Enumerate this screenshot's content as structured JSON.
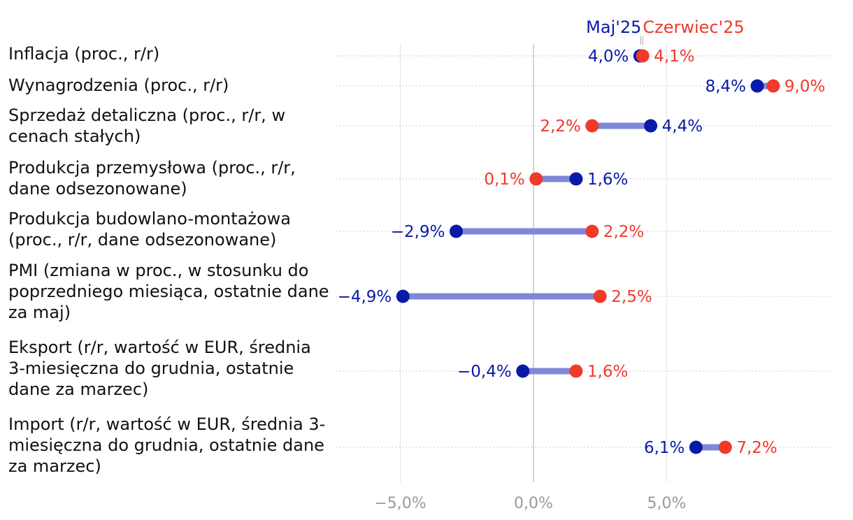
{
  "chart_data": {
    "type": "dumbbell",
    "series": [
      {
        "name": "Maj'25",
        "color": "#0a1aa8"
      },
      {
        "name": "Czerwiec'25",
        "color": "#f03a2a"
      }
    ],
    "link_color": "#7f87d8",
    "categories": [
      "Inflacja (proc., r/r)",
      "Wynagrodzenia (proc., r/r)",
      "Sprzedaż detaliczna (proc., r/r, w cenach stałych)",
      "Produkcja przemysłowa (proc., r/r, dane odsezonowane)",
      "Produkcja budowlano-montażowa (proc., r/r, dane odsezonowane)",
      "PMI (zmiana w proc., w stosunku do poprzedniego miesiąca, ostatnie dane za maj)",
      "Eksport (r/r, wartość w EUR, średnia 3-miesięczna do grudnia, ostatnie dane za marzec)",
      "Import (r/r, wartość w EUR, średnia 3-miesięczna do grudnia, ostatnie dane za marzec)"
    ],
    "may_values": [
      4.0,
      8.4,
      4.4,
      1.6,
      -2.9,
      -4.9,
      -0.4,
      6.1
    ],
    "june_values": [
      4.1,
      9.0,
      2.2,
      0.1,
      2.2,
      2.5,
      1.6,
      7.2
    ],
    "may_labels": [
      "4,0%",
      "8,4%",
      "4,4%",
      "1,6%",
      "−2,9%",
      "−4,9%",
      "−0,4%",
      "6,1%"
    ],
    "june_labels": [
      "4,1%",
      "9,0%",
      "2,2%",
      "0,1%",
      "2,2%",
      "2,5%",
      "1,6%",
      "7,2%"
    ],
    "x_ticks": [
      -5,
      0,
      5
    ],
    "x_tick_labels": [
      "−5,0%",
      "0,0%",
      "5,0%"
    ],
    "xlim": [
      -7.5,
      11.1
    ],
    "grid": "vertical at ticks, dotted row guides"
  }
}
